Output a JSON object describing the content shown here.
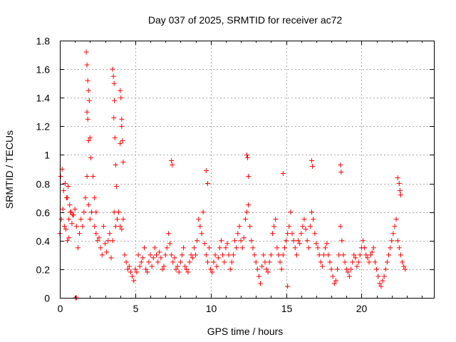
{
  "chart_data": {
    "type": "scatter",
    "title": "Day 037 of 2025, SRMTID for receiver ac72",
    "xlabel": "GPS time / hours",
    "ylabel": "SRMTID / TECUs",
    "xlim": [
      0,
      24.8
    ],
    "ylim": [
      0,
      1.8
    ],
    "xticks": [
      0,
      5,
      10,
      15,
      20
    ],
    "xtick_labels": [
      "0",
      "5",
      "10",
      "15",
      "20"
    ],
    "yticks": [
      0,
      0.2,
      0.4,
      0.6,
      0.8,
      1,
      1.2,
      1.4,
      1.6,
      1.8
    ],
    "ytick_labels": [
      "0",
      "0.2",
      "0.4",
      "0.6",
      "0.8",
      "1",
      "1.2",
      "1.4",
      "1.6",
      "1.8"
    ],
    "grid": true,
    "marker": "+",
    "marker_color": "#ff0000",
    "series": [
      {
        "name": "SRMTID",
        "x": [
          0.0,
          0.1,
          0.2,
          0.3,
          0.4,
          0.5,
          0.6,
          0.7,
          0.8,
          0.9,
          1.0,
          1.1,
          1.2,
          1.3,
          1.4,
          1.5,
          1.6,
          1.7,
          1.8,
          1.9,
          2.0,
          2.1,
          2.2,
          2.3,
          2.4,
          2.5,
          2.6,
          2.7,
          2.8,
          2.9,
          3.0,
          3.1,
          3.2,
          3.3,
          3.4,
          3.5,
          3.6,
          3.7,
          3.8,
          3.9,
          4.0,
          4.1,
          4.2,
          4.3,
          4.4,
          4.5,
          4.6,
          4.7,
          4.8,
          4.9,
          5.0,
          5.1,
          5.2,
          5.3,
          5.4,
          5.5,
          5.6,
          5.7,
          5.8,
          5.9,
          6.0,
          6.1,
          6.2,
          6.3,
          6.4,
          6.5,
          6.6,
          6.7,
          6.8,
          6.9,
          7.0,
          7.1,
          7.2,
          7.3,
          7.4,
          7.5,
          7.6,
          7.7,
          7.8,
          7.9,
          8.0,
          8.1,
          8.2,
          8.3,
          8.4,
          8.5,
          8.6,
          8.7,
          8.8,
          8.9,
          9.0,
          9.1,
          9.2,
          9.3,
          9.4,
          9.5,
          9.6,
          9.7,
          9.8,
          9.9,
          10.0,
          10.1,
          10.2,
          10.3,
          10.4,
          10.5,
          10.6,
          10.7,
          10.8,
          10.9,
          11.0,
          11.1,
          11.2,
          11.3,
          11.4,
          11.5,
          11.6,
          11.7,
          11.8,
          11.9,
          12.0,
          12.1,
          12.2,
          12.3,
          12.4,
          12.5,
          12.6,
          12.7,
          12.8,
          12.9,
          13.0,
          13.1,
          13.2,
          13.3,
          13.4,
          13.5,
          13.6,
          13.7,
          13.8,
          13.9,
          14.0,
          14.1,
          14.2,
          14.3,
          14.4,
          14.5,
          14.6,
          14.7,
          14.8,
          14.9,
          15.0,
          15.1,
          15.2,
          15.3,
          15.4,
          15.5,
          15.6,
          15.7,
          15.8,
          15.9,
          16.0,
          16.1,
          16.2,
          16.3,
          16.4,
          16.5,
          16.6,
          16.7,
          16.8,
          16.9,
          17.0,
          17.1,
          17.2,
          17.3,
          17.4,
          17.5,
          17.6,
          17.7,
          17.8,
          17.9,
          18.0,
          18.1,
          18.2,
          18.3,
          18.4,
          18.5,
          18.6,
          18.7,
          18.8,
          18.9,
          19.0,
          19.1,
          19.2,
          19.3,
          19.4,
          19.5,
          19.6,
          19.7,
          19.8,
          19.9,
          20.0,
          20.1,
          20.2,
          20.3,
          20.4,
          20.5,
          20.6,
          20.7,
          20.8,
          20.9,
          21.0,
          21.1,
          21.2,
          21.3,
          21.4,
          21.5,
          21.6,
          21.7,
          21.8,
          21.9,
          22.0,
          22.1,
          22.2,
          22.3,
          22.4,
          22.5,
          22.6,
          22.7,
          22.8,
          22.9,
          0.05,
          0.15,
          0.25,
          0.35,
          0.45,
          0.55,
          0.65,
          0.75,
          0.85,
          1.75,
          1.8,
          1.85,
          1.9,
          1.95,
          2.0,
          2.05,
          1.8,
          1.85,
          1.9,
          3.5,
          3.55,
          3.6,
          3.62,
          3.58,
          3.65,
          3.7,
          3.75,
          4.0,
          4.05,
          4.1,
          4.15,
          4.0,
          4.1,
          4.2,
          1.05,
          1.1,
          7.4,
          7.45,
          9.7,
          9.8,
          12.4,
          12.45,
          12.5,
          14.8,
          16.7,
          16.75,
          18.6,
          18.65,
          22.4,
          22.5,
          22.55,
          22.6,
          15.1,
          2.3,
          2.4,
          0.5,
          0.6
        ],
        "y": [
          0.45,
          0.55,
          0.62,
          0.5,
          0.48,
          0.7,
          0.55,
          0.6,
          0.52,
          0.58,
          0.62,
          0.5,
          0.35,
          0.45,
          0.55,
          0.5,
          0.6,
          0.7,
          0.85,
          0.65,
          0.55,
          0.6,
          0.85,
          0.5,
          0.45,
          0.4,
          0.42,
          0.35,
          0.3,
          0.5,
          0.38,
          0.32,
          0.4,
          0.45,
          0.28,
          0.4,
          0.6,
          0.5,
          0.55,
          0.6,
          0.5,
          0.48,
          0.55,
          0.3,
          0.25,
          0.2,
          0.22,
          0.18,
          0.15,
          0.12,
          0.2,
          0.18,
          0.3,
          0.22,
          0.25,
          0.28,
          0.35,
          0.2,
          0.18,
          0.25,
          0.3,
          0.22,
          0.28,
          0.35,
          0.3,
          0.25,
          0.32,
          0.28,
          0.2,
          0.22,
          0.3,
          0.35,
          0.45,
          0.38,
          0.3,
          0.25,
          0.28,
          0.2,
          0.22,
          0.18,
          0.25,
          0.3,
          0.35,
          0.22,
          0.2,
          0.18,
          0.25,
          0.3,
          0.28,
          0.35,
          0.3,
          0.4,
          0.55,
          0.5,
          0.45,
          0.6,
          0.38,
          0.3,
          0.25,
          0.35,
          0.2,
          0.18,
          0.25,
          0.3,
          0.22,
          0.28,
          0.35,
          0.4,
          0.3,
          0.25,
          0.35,
          0.38,
          0.3,
          0.2,
          0.25,
          0.3,
          0.4,
          0.35,
          0.45,
          0.5,
          0.4,
          0.35,
          0.42,
          0.55,
          0.6,
          0.65,
          0.5,
          0.4,
          0.35,
          0.3,
          0.25,
          0.2,
          0.15,
          0.1,
          0.22,
          0.3,
          0.25,
          0.2,
          0.18,
          0.25,
          0.3,
          0.45,
          0.5,
          0.55,
          0.35,
          0.3,
          0.25,
          0.2,
          0.3,
          0.35,
          0.4,
          0.45,
          0.5,
          0.6,
          0.45,
          0.4,
          0.35,
          0.3,
          0.4,
          0.38,
          0.45,
          0.5,
          0.55,
          0.48,
          0.4,
          0.35,
          0.5,
          0.6,
          0.55,
          0.45,
          0.38,
          0.35,
          0.3,
          0.25,
          0.22,
          0.3,
          0.35,
          0.38,
          0.3,
          0.25,
          0.2,
          0.15,
          0.1,
          0.12,
          0.2,
          0.3,
          0.5,
          0.4,
          0.3,
          0.25,
          0.2,
          0.18,
          0.15,
          0.2,
          0.25,
          0.3,
          0.28,
          0.22,
          0.25,
          0.3,
          0.35,
          0.4,
          0.35,
          0.3,
          0.28,
          0.25,
          0.3,
          0.32,
          0.35,
          0.25,
          0.2,
          0.15,
          0.1,
          0.08,
          0.12,
          0.15,
          0.2,
          0.25,
          0.3,
          0.35,
          0.4,
          0.45,
          0.5,
          0.55,
          0.4,
          0.35,
          0.3,
          0.25,
          0.22,
          0.2,
          0.85,
          0.9,
          0.75,
          0.8,
          0.7,
          0.78,
          0.65,
          0.6,
          0.58,
          1.72,
          1.63,
          1.52,
          1.45,
          1.38,
          1.12,
          0.98,
          1.3,
          1.25,
          1.1,
          1.6,
          1.55,
          1.5,
          1.38,
          1.26,
          1.12,
          0.93,
          0.78,
          1.45,
          1.4,
          1.25,
          1.1,
          1.08,
          1.2,
          0.95,
          0.0,
          0.0,
          0.96,
          0.93,
          0.89,
          0.8,
          1.0,
          0.98,
          0.85,
          0.87,
          0.96,
          0.92,
          0.93,
          0.88,
          0.84,
          0.8,
          0.75,
          0.72,
          0.08,
          0.7,
          0.6,
          0.4,
          0.42
        ]
      }
    ]
  }
}
